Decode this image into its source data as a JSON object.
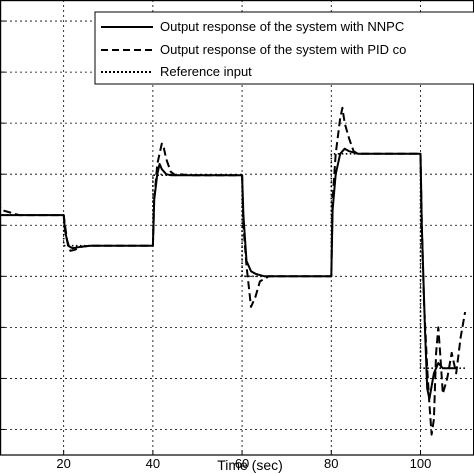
{
  "chart_data": {
    "type": "line",
    "xlabel": "Time (sec)",
    "ylabel": "",
    "title": "",
    "xlim": [
      -1,
      112
    ],
    "ylim": [
      0.05,
      1.0
    ],
    "xticks": [
      20,
      40,
      60,
      80,
      100
    ],
    "yticks": [
      0.1,
      0.2,
      0.3,
      0.4,
      0.5,
      0.6,
      0.7,
      0.8,
      0.9
    ],
    "grid": true,
    "legend_position": "top-right",
    "series": [
      {
        "name": "Output response of the system with NNPC",
        "style": "solid",
        "x": [
          0,
          0.5,
          1,
          1.5,
          2,
          20,
          20.3,
          21,
          22,
          24,
          26,
          40,
          40.3,
          41,
          41.5,
          42,
          43,
          44,
          46,
          60,
          60.3,
          61,
          62,
          63,
          65,
          67,
          80,
          80.3,
          81,
          82,
          83,
          84,
          86,
          90,
          100,
          100.3,
          101,
          101.5,
          102,
          103,
          104,
          105,
          106,
          108
        ],
        "y": [
          0.56,
          0.58,
          0.55,
          0.53,
          0.52,
          0.52,
          0.49,
          0.46,
          0.455,
          0.458,
          0.46,
          0.46,
          0.55,
          0.6,
          0.62,
          0.61,
          0.6,
          0.598,
          0.598,
          0.598,
          0.52,
          0.43,
          0.41,
          0.405,
          0.4,
          0.4,
          0.4,
          0.53,
          0.6,
          0.64,
          0.65,
          0.645,
          0.64,
          0.64,
          0.64,
          0.5,
          0.3,
          0.18,
          0.16,
          0.21,
          0.23,
          0.22,
          0.22,
          0.22
        ]
      },
      {
        "name": "Output response of the system with PID co",
        "style": "dashed",
        "x": [
          0,
          0.5,
          1,
          1.5,
          2,
          3,
          4,
          5,
          6,
          8,
          10,
          20,
          20.3,
          20.8,
          21.5,
          22.5,
          24,
          26,
          40,
          40.3,
          41,
          42,
          42.5,
          43,
          44,
          45,
          46,
          48,
          60,
          60.3,
          61,
          61.5,
          62,
          63,
          64,
          66,
          68,
          80,
          80.3,
          81,
          82,
          82.5,
          83,
          84,
          85,
          86,
          88,
          90,
          100,
          100.3,
          100.8,
          101.5,
          102,
          102.5,
          103,
          103.5,
          104,
          104.5,
          105,
          106,
          107,
          108,
          109,
          110
        ],
        "y": [
          0.58,
          0.62,
          0.56,
          0.5,
          0.45,
          0.52,
          0.58,
          0.55,
          0.53,
          0.525,
          0.52,
          0.52,
          0.5,
          0.47,
          0.45,
          0.452,
          0.458,
          0.46,
          0.46,
          0.55,
          0.62,
          0.66,
          0.65,
          0.63,
          0.605,
          0.598,
          0.6,
          0.598,
          0.598,
          0.5,
          0.42,
          0.38,
          0.34,
          0.36,
          0.39,
          0.4,
          0.4,
          0.4,
          0.55,
          0.64,
          0.71,
          0.73,
          0.7,
          0.67,
          0.645,
          0.64,
          0.64,
          0.64,
          0.64,
          0.5,
          0.35,
          0.22,
          0.15,
          0.09,
          0.12,
          0.25,
          0.3,
          0.24,
          0.17,
          0.2,
          0.25,
          0.21,
          0.28,
          0.33
        ]
      },
      {
        "name": "Reference input",
        "style": "dotted",
        "x": [
          0,
          20,
          20,
          40,
          40,
          60,
          60,
          80,
          80,
          100,
          100,
          110
        ],
        "y": [
          0.52,
          0.52,
          0.46,
          0.46,
          0.598,
          0.598,
          0.4,
          0.4,
          0.64,
          0.64,
          0.22,
          0.22
        ]
      }
    ]
  }
}
